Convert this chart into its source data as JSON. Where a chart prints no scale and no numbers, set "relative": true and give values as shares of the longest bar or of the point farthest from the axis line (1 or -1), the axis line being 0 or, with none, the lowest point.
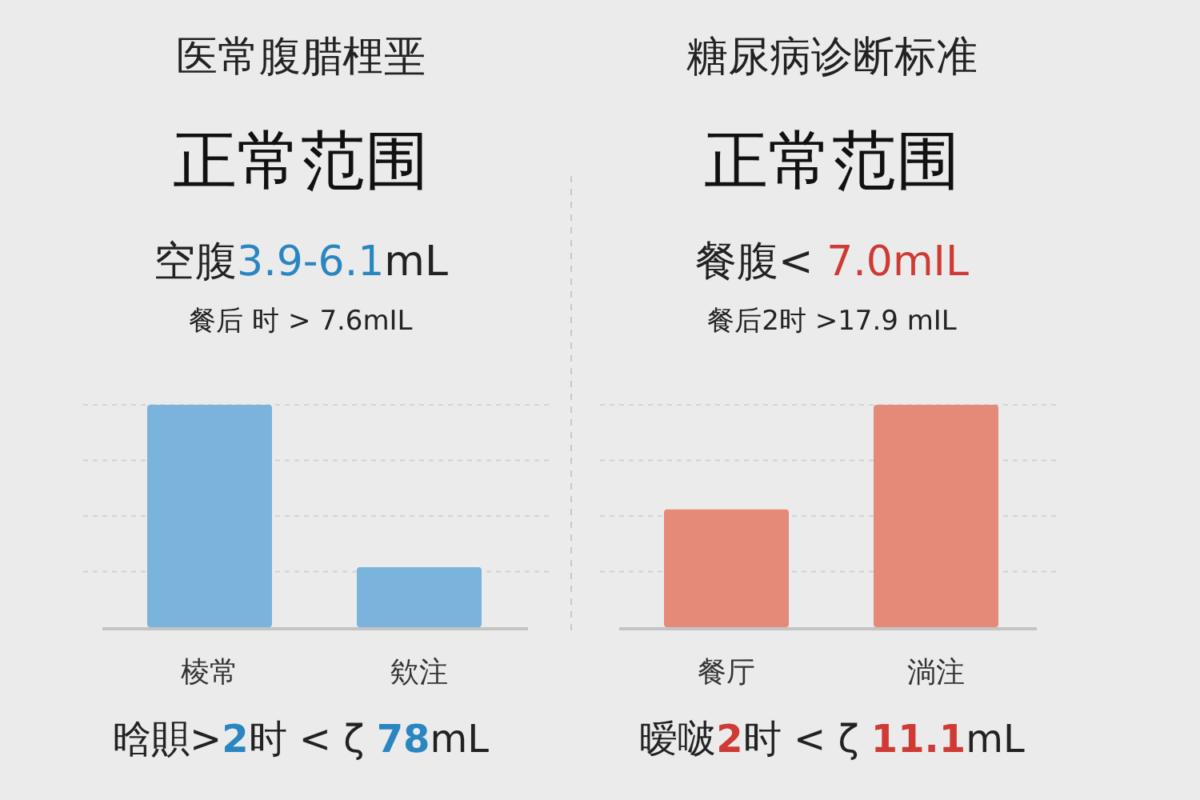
{
  "chart_data": [
    {
      "type": "bar",
      "title": "医常腹腊梩垩",
      "subtitle": "正常范围",
      "categories": [
        "棱常",
        "欸注"
      ],
      "values": [
        1,
        0.27
      ],
      "color": "#7ab3db",
      "relative": true,
      "grid": "y",
      "annotations": [
        "空腹3.9-6.1mL",
        "餐后 时 > 7.6mIL",
        "晗賏>2时 < ζ  78mL"
      ]
    },
    {
      "type": "bar",
      "title": "糖尿病诊断标准",
      "subtitle": "正常范围",
      "categories": [
        "餐厅",
        "淌注"
      ],
      "values": [
        0.53,
        1
      ],
      "color": "#e58a78",
      "relative": true,
      "grid": "y",
      "annotations": [
        "餐腹< 7.0mIL",
        "餐后2时 >17.9 mIL",
        "暧啵2时 < ζ  11.1mL"
      ]
    }
  ]
}
